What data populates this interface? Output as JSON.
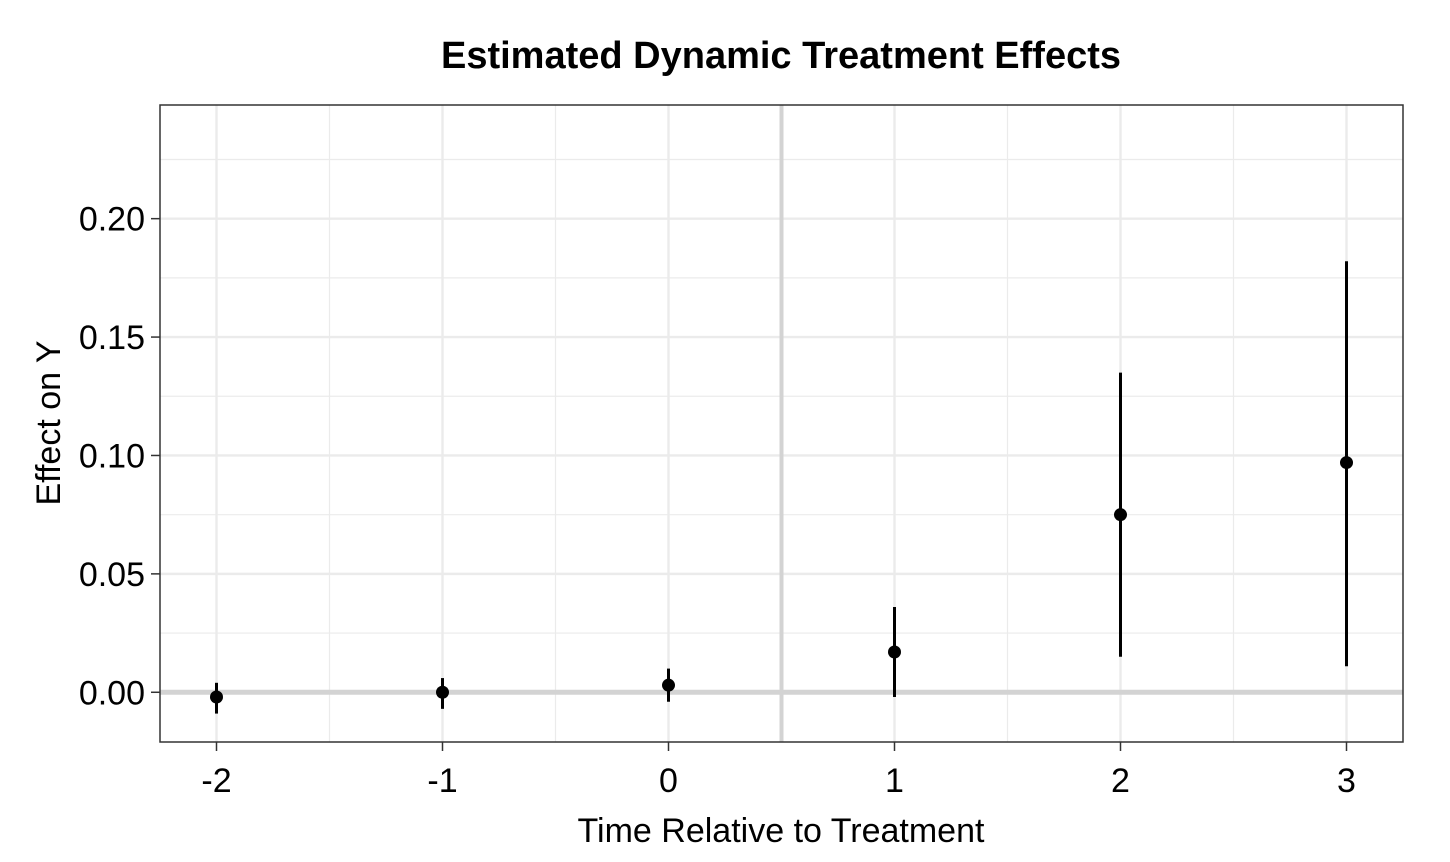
{
  "chart_data": {
    "type": "scatter",
    "title": "Estimated Dynamic Treatment Effects",
    "xlabel": "Time Relative to Treatment",
    "ylabel": "Effect on Y",
    "x": [
      -2,
      -1,
      0,
      1,
      2,
      3
    ],
    "y": [
      -0.002,
      0.0,
      0.003,
      0.017,
      0.075,
      0.097
    ],
    "ci_low": [
      -0.009,
      -0.007,
      -0.004,
      -0.002,
      0.015,
      0.011
    ],
    "ci_high": [
      0.004,
      0.006,
      0.01,
      0.036,
      0.135,
      0.182
    ],
    "xlim": [
      -2.25,
      3.25
    ],
    "ylim": [
      -0.021,
      0.248
    ],
    "x_ticks": [
      -2,
      -1,
      0,
      1,
      2,
      3
    ],
    "x_tick_labels": [
      "-2",
      "-1",
      "0",
      "1",
      "2",
      "3"
    ],
    "y_ticks": [
      0.0,
      0.05,
      0.1,
      0.15,
      0.2
    ],
    "y_tick_labels": [
      "0.00",
      "0.05",
      "0.10",
      "0.15",
      "0.20"
    ],
    "reference_lines": {
      "horizontal": 0.0,
      "vertical": 0.5
    },
    "grid": true,
    "colors": {
      "point": "#000000",
      "reference_line": "#d3d3d3",
      "grid": "#ebebeb",
      "panel_border": "#333333"
    }
  }
}
